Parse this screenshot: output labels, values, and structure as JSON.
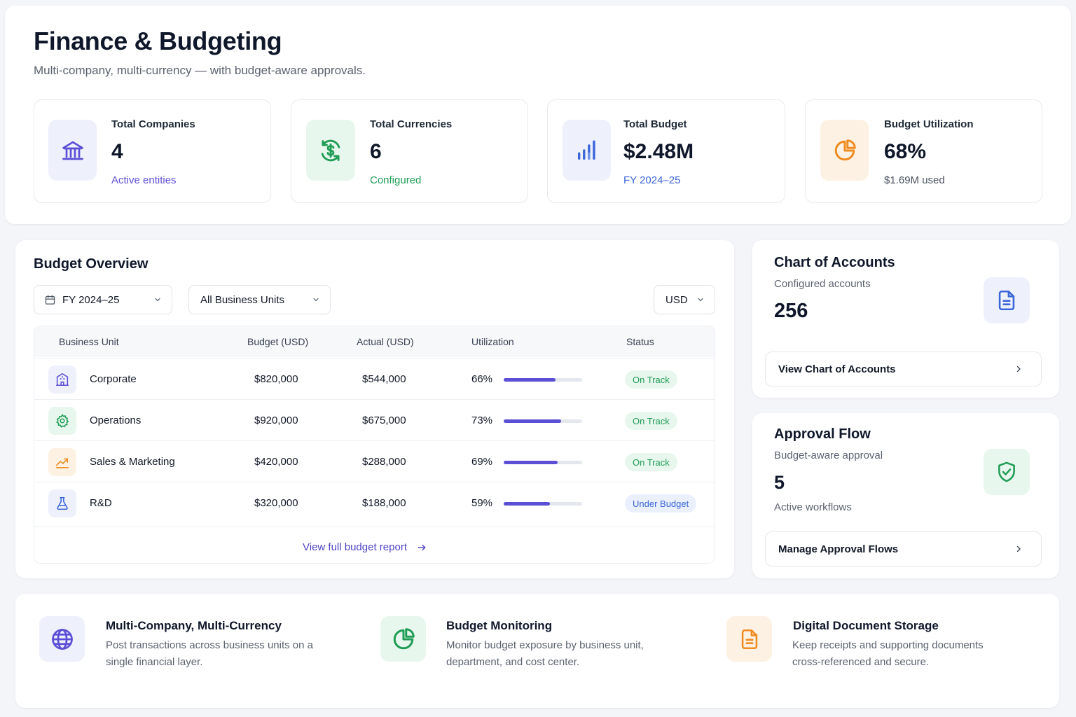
{
  "header": {
    "title": "Finance & Budgeting",
    "subtitle": "Multi-company, multi-currency — with budget-aware approvals."
  },
  "stats": [
    {
      "label": "Total Companies",
      "value": "4",
      "sub": "Active entities",
      "icon": "bank-icon",
      "accent": "#5b4fd6"
    },
    {
      "label": "Total Currencies",
      "value": "6",
      "sub": "Configured",
      "icon": "currency-exchange-icon",
      "accent": "#1f9d55"
    },
    {
      "label": "Total Budget",
      "value": "$2.48M",
      "sub": "FY 2024–25",
      "icon": "bar-chart-icon",
      "accent": "#3a66d8"
    },
    {
      "label": "Budget Utilization",
      "value": "68%",
      "sub": "$1.69M used",
      "icon": "pie-chart-icon",
      "accent": "#f08c1f"
    }
  ],
  "budget_overview": {
    "title": "Budget Overview",
    "filters": {
      "fiscal_year": "FY 2024–25",
      "business_unit": "All Business Units",
      "currency": "USD"
    },
    "columns": [
      "Business Unit",
      "Budget (USD)",
      "Actual (USD)",
      "Utilization",
      "Status"
    ],
    "rows": [
      {
        "unit": "Corporate",
        "icon": "building-icon",
        "budget": "$820,000",
        "actual": "$544,000",
        "utilization": "66%",
        "utilization_value": 0.66,
        "status": "On Track",
        "status_kind": "ok"
      },
      {
        "unit": "Operations",
        "icon": "gear-icon",
        "budget": "$920,000",
        "actual": "$675,000",
        "utilization": "73%",
        "utilization_value": 0.73,
        "status": "On Track",
        "status_kind": "ok"
      },
      {
        "unit": "Sales & Marketing",
        "icon": "trend-up-icon",
        "budget": "$420,000",
        "actual": "$288,000",
        "utilization": "69%",
        "utilization_value": 0.69,
        "status": "On Track",
        "status_kind": "ok"
      },
      {
        "unit": "R&D",
        "icon": "flask-icon",
        "budget": "$320,000",
        "actual": "$188,000",
        "utilization": "59%",
        "utilization_value": 0.59,
        "status": "Under Budget",
        "status_kind": "under"
      }
    ],
    "footer_link": "View full budget report"
  },
  "chart_of_accounts": {
    "title": "Chart of Accounts",
    "subtitle": "Configured accounts",
    "value": "256",
    "link": "View Chart of Accounts"
  },
  "approval_flow": {
    "title": "Approval Flow",
    "subtitle": "Budget-aware approval",
    "value": "5",
    "value_label": "Active workflows",
    "link": "Manage Approval Flows"
  },
  "features": [
    {
      "title": "Multi-Company, Multi-Currency",
      "desc_line1": "Post transactions across business units on a",
      "desc_line2": "single financial layer.",
      "icon": "globe-icon"
    },
    {
      "title": "Budget Monitoring",
      "desc_line1": "Monitor budget exposure by business unit,",
      "desc_line2": "department, and cost center.",
      "icon": "pie-chart-icon"
    },
    {
      "title": "Digital Document Storage",
      "desc_line1": "Keep receipts and supporting documents",
      "desc_line2": "cross-referenced and secure.",
      "icon": "document-icon"
    }
  ],
  "colors": {
    "primary": "#5b4fd6",
    "success": "#1f9d55",
    "info": "#3a66d8",
    "warning": "#f08c1f"
  }
}
